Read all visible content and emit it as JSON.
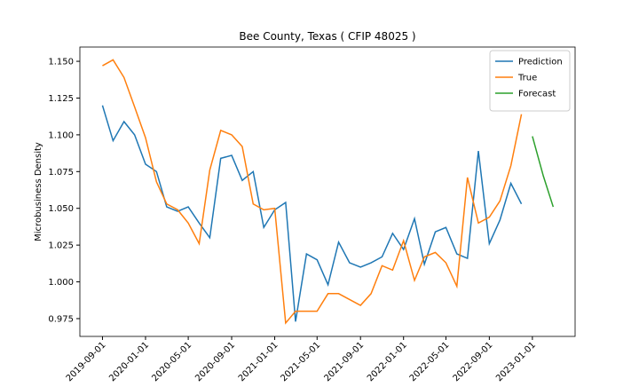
{
  "chart_data": {
    "type": "line",
    "title": "Bee County, Texas ( CFIP 48025 )",
    "y_label": "Microbusiness Density",
    "x": [
      "2019-09-01",
      "2019-10-01",
      "2019-11-01",
      "2019-12-01",
      "2020-01-01",
      "2020-02-01",
      "2020-03-01",
      "2020-04-01",
      "2020-05-01",
      "2020-06-01",
      "2020-07-01",
      "2020-08-01",
      "2020-09-01",
      "2020-10-01",
      "2020-11-01",
      "2020-12-01",
      "2021-01-01",
      "2021-02-01",
      "2021-03-01",
      "2021-04-01",
      "2021-05-01",
      "2021-06-01",
      "2021-07-01",
      "2021-08-01",
      "2021-09-01",
      "2021-10-01",
      "2021-11-01",
      "2021-12-01",
      "2022-01-01",
      "2022-02-01",
      "2022-03-01",
      "2022-04-01",
      "2022-05-01",
      "2022-06-01",
      "2022-07-01",
      "2022-08-01",
      "2022-09-01",
      "2022-10-01",
      "2022-11-01",
      "2022-12-01",
      "2023-01-01",
      "2023-02-01",
      "2023-03-01"
    ],
    "series": [
      {
        "name": "Prediction",
        "color": "#1f77b4",
        "values": [
          1.12,
          1.096,
          1.109,
          1.1,
          1.08,
          1.075,
          1.051,
          1.048,
          1.051,
          1.04,
          1.03,
          1.084,
          1.086,
          1.069,
          1.075,
          1.037,
          1.049,
          1.054,
          0.973,
          1.019,
          1.015,
          0.998,
          1.027,
          1.013,
          1.01,
          1.013,
          1.017,
          1.033,
          1.022,
          1.043,
          1.012,
          1.034,
          1.037,
          1.019,
          1.016,
          1.089,
          1.026,
          1.042,
          1.067,
          1.053,
          null,
          null,
          null
        ]
      },
      {
        "name": "True",
        "color": "#ff7f0e",
        "values": [
          1.147,
          1.151,
          1.139,
          1.119,
          1.098,
          1.068,
          1.053,
          1.049,
          1.04,
          1.026,
          1.076,
          1.103,
          1.1,
          1.092,
          1.053,
          1.049,
          1.05,
          0.972,
          0.98,
          0.98,
          0.98,
          0.992,
          0.992,
          0.988,
          0.984,
          0.992,
          1.011,
          1.008,
          1.028,
          1.001,
          1.017,
          1.02,
          1.013,
          0.997,
          1.071,
          1.04,
          1.044,
          1.055,
          1.079,
          1.114,
          null,
          null,
          null
        ]
      },
      {
        "name": "Forecast",
        "color": "#2ca02c",
        "values": [
          null,
          null,
          null,
          null,
          null,
          null,
          null,
          null,
          null,
          null,
          null,
          null,
          null,
          null,
          null,
          null,
          null,
          null,
          null,
          null,
          null,
          null,
          null,
          null,
          null,
          null,
          null,
          null,
          null,
          null,
          null,
          null,
          null,
          null,
          null,
          null,
          null,
          null,
          null,
          null,
          1.099,
          1.072,
          1.051
        ]
      }
    ],
    "xlim": [
      "2019-06-29",
      "2023-05-02"
    ],
    "xticks": [
      "2019-09-01",
      "2020-01-01",
      "2020-05-01",
      "2020-09-01",
      "2021-01-01",
      "2021-05-01",
      "2021-09-01",
      "2022-01-01",
      "2022-05-01",
      "2022-09-01",
      "2023-01-01"
    ],
    "ylim": [
      0.9629,
      1.1597
    ],
    "yticks": [
      0.975,
      {
        "value": 1.0,
        "label": "1.000"
      },
      1.025,
      {
        "value": 1.05,
        "label": "1.050"
      },
      1.075,
      {
        "value": 1.1,
        "label": "1.100"
      },
      1.125,
      {
        "value": 1.15,
        "label": "1.150"
      }
    ],
    "legend": "upper right"
  }
}
